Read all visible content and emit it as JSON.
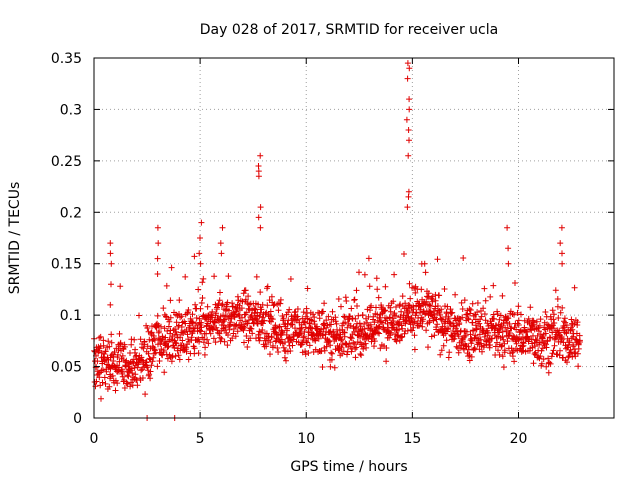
{
  "chart_data": {
    "type": "scatter",
    "title": "Day 028 of 2017, SRMTID for receiver ucla",
    "xlabel": "GPS time / hours",
    "ylabel": "SRMTID / TECUs",
    "xlim": [
      0,
      24.5
    ],
    "ylim": [
      0,
      0.35
    ],
    "grid": true,
    "x_ticks": [
      0,
      5,
      10,
      15,
      20
    ],
    "x_tick_labels": [
      "0",
      "5",
      "10",
      "15",
      "20"
    ],
    "y_ticks": [
      0,
      0.05,
      0.1,
      0.15,
      0.2,
      0.25,
      0.3,
      0.35
    ],
    "y_tick_labels": [
      "0",
      "0.05",
      "0.1",
      "0.15",
      "0.2",
      "0.25",
      "0.3",
      "0.35"
    ],
    "marker": "+",
    "marker_color": "#e00000",
    "series": [
      {
        "name": "SRMTID",
        "x_start": 0.0,
        "x_end": 22.9,
        "approx_points": 1800,
        "baseline_profile": [
          {
            "x": 0.0,
            "y": 0.052
          },
          {
            "x": 2.0,
            "y": 0.05
          },
          {
            "x": 3.0,
            "y": 0.075
          },
          {
            "x": 5.0,
            "y": 0.085
          },
          {
            "x": 7.0,
            "y": 0.1
          },
          {
            "x": 9.0,
            "y": 0.085
          },
          {
            "x": 12.0,
            "y": 0.08
          },
          {
            "x": 14.0,
            "y": 0.095
          },
          {
            "x": 15.5,
            "y": 0.105
          },
          {
            "x": 17.0,
            "y": 0.085
          },
          {
            "x": 20.0,
            "y": 0.08
          },
          {
            "x": 22.9,
            "y": 0.075
          }
        ],
        "spread": 0.024,
        "spikes": [
          {
            "x": 0.8,
            "ys": [
              0.17,
              0.16,
              0.15,
              0.13,
              0.11
            ]
          },
          {
            "x": 3.0,
            "ys": [
              0.185,
              0.17,
              0.155,
              0.14
            ]
          },
          {
            "x": 5.0,
            "ys": [
              0.19,
              0.175,
              0.16,
              0.15
            ]
          },
          {
            "x": 6.0,
            "ys": [
              0.185,
              0.17,
              0.16
            ]
          },
          {
            "x": 7.8,
            "ys": [
              0.255,
              0.245,
              0.24,
              0.235,
              0.205,
              0.195,
              0.185
            ]
          },
          {
            "x": 14.8,
            "ys": [
              0.345,
              0.34,
              0.33,
              0.31,
              0.3,
              0.29,
              0.28,
              0.27,
              0.255,
              0.22,
              0.215,
              0.205
            ]
          },
          {
            "x": 19.5,
            "ys": [
              0.185,
              0.165,
              0.15
            ]
          },
          {
            "x": 22.0,
            "ys": [
              0.185,
              0.17,
              0.16,
              0.15
            ]
          }
        ],
        "zero_points": [
          {
            "x": 2.5,
            "y": 0.0
          },
          {
            "x": 3.8,
            "y": 0.0
          }
        ]
      }
    ]
  }
}
